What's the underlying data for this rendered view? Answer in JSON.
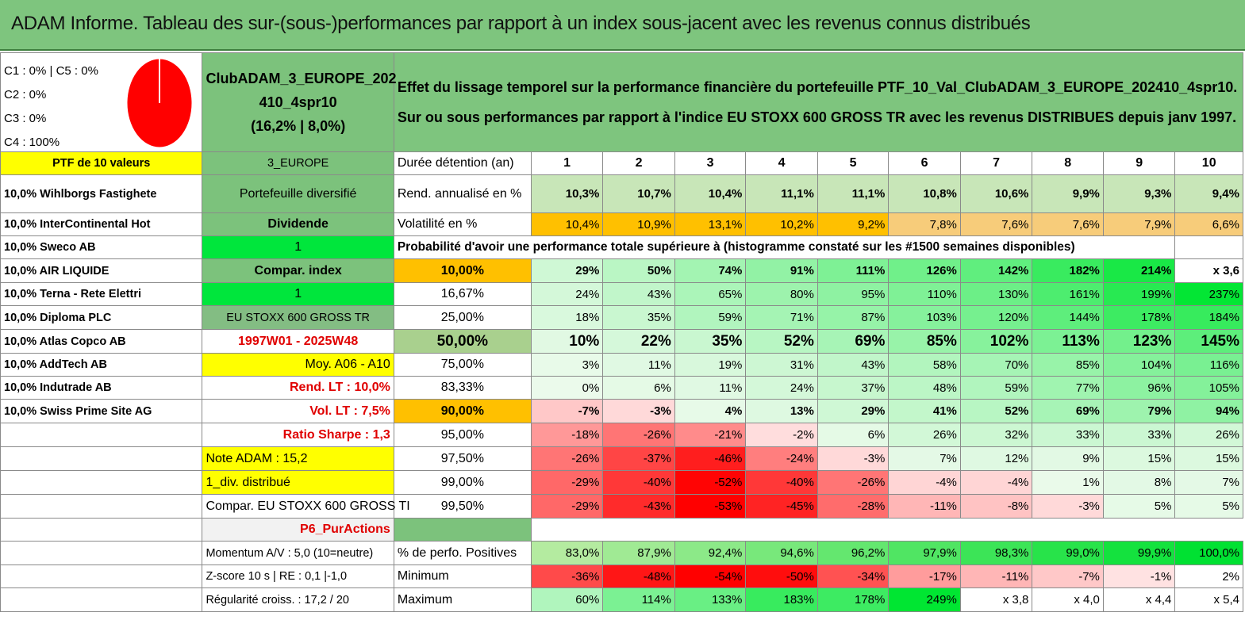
{
  "title": "ADAM Informe. Tableau des sur-(sous-)performances par rapport à un index sous-jacent avec les revenus connus distribués",
  "pie": {
    "legend": [
      "C1 : 0% | C5 : 0%",
      "C2 : 0%",
      "C3 : 0%",
      "C4 : 100%"
    ],
    "color": "#ff0000"
  },
  "fund": {
    "name_line1": "ClubADAM_3_EUROPE_202",
    "name_line2": "410_4spr10",
    "perf": "(16,2% | 8,0%)"
  },
  "description": "Effet du lissage temporel sur la performance financière du portefeuille PTF_10_Val_ClubADAM_3_EUROPE_202410_4spr10. Sur ou sous performances par rapport à l'indice EU STOXX 600 GROSS TR avec les revenus DISTRIBUES depuis janv 1997.",
  "left": {
    "header": "PTF de 10 valeurs",
    "holdings": [
      "10,0% Wihlborgs Fastighete",
      "10,0% InterContinental Hot",
      "10,0% Sweco AB",
      "10,0% AIR LIQUIDE",
      "10,0% Terna - Rete Elettri",
      "10,0% Diploma PLC",
      "10,0% Atlas Copco AB",
      "10,0% AddTech AB",
      "10,0% Indutrade AB",
      "10,0% Swiss Prime Site AG"
    ]
  },
  "middle": {
    "region": "3_EUROPE",
    "type": "Portefeuille diversifié",
    "dividend": "Dividende",
    "dividend_val": "1",
    "compar": "Compar. index",
    "compar_val": "1",
    "index_name": "EU STOXX 600 GROSS TR",
    "period": "1997W01 - 2025W48",
    "moy": "Moy. A06 - A10",
    "rend_lt": "Rend. LT : 10,0%",
    "vol_lt": "Vol. LT : 7,5%",
    "sharpe": "Ratio Sharpe : 1,3",
    "note": "Note ADAM : 15,2",
    "div_distrib": "1_div. distribué",
    "compar_index": "Compar. EU STOXX 600 GROSS TI",
    "profile": "P6_PurActions",
    "momentum": "Momentum A/V : 5,0 (10=neutre)",
    "zscore": "Z-score 10 s | RE : 0,1 |-1,0",
    "regularite": "Régularité croiss. : 17,2 / 20"
  },
  "grid": {
    "duree_label": "Durée détention (an)",
    "years": [
      "1",
      "2",
      "3",
      "4",
      "5",
      "6",
      "7",
      "8",
      "9",
      "10"
    ],
    "rend_label": "Rend. annualisé en %",
    "rend": [
      "10,3%",
      "10,7%",
      "10,4%",
      "11,1%",
      "11,1%",
      "10,8%",
      "10,6%",
      "9,9%",
      "9,3%",
      "9,4%"
    ],
    "vol_label": "Volatilité en %",
    "vol": [
      "10,4%",
      "10,9%",
      "13,1%",
      "10,2%",
      "9,2%",
      "7,8%",
      "7,6%",
      "7,6%",
      "7,9%",
      "6,6%"
    ],
    "prob_title": "Probabilité d'avoir une performance totale supérieure à (histogramme constaté sur les #1500 semaines disponibles)",
    "quantiles": [
      {
        "p": "10,00%",
        "v": [
          "29%",
          "50%",
          "74%",
          "91%",
          "111%",
          "126%",
          "142%",
          "182%",
          "214%",
          "x 3,6"
        ]
      },
      {
        "p": "16,67%",
        "v": [
          "24%",
          "43%",
          "65%",
          "80%",
          "95%",
          "110%",
          "130%",
          "161%",
          "199%",
          "237%"
        ]
      },
      {
        "p": "25,00%",
        "v": [
          "18%",
          "35%",
          "59%",
          "71%",
          "87%",
          "103%",
          "120%",
          "144%",
          "178%",
          "184%"
        ]
      },
      {
        "p": "50,00%",
        "v": [
          "10%",
          "22%",
          "35%",
          "52%",
          "69%",
          "85%",
          "102%",
          "113%",
          "123%",
          "145%"
        ]
      },
      {
        "p": "75,00%",
        "v": [
          "3%",
          "11%",
          "19%",
          "31%",
          "43%",
          "58%",
          "70%",
          "85%",
          "104%",
          "116%"
        ]
      },
      {
        "p": "83,33%",
        "v": [
          "0%",
          "6%",
          "11%",
          "24%",
          "37%",
          "48%",
          "59%",
          "77%",
          "96%",
          "105%"
        ]
      },
      {
        "p": "90,00%",
        "v": [
          "-7%",
          "-3%",
          "4%",
          "13%",
          "29%",
          "41%",
          "52%",
          "69%",
          "79%",
          "94%"
        ]
      },
      {
        "p": "95,00%",
        "v": [
          "-18%",
          "-26%",
          "-21%",
          "-2%",
          "6%",
          "26%",
          "32%",
          "33%",
          "33%",
          "26%"
        ]
      },
      {
        "p": "97,50%",
        "v": [
          "-26%",
          "-37%",
          "-46%",
          "-24%",
          "-3%",
          "7%",
          "12%",
          "9%",
          "15%",
          "15%"
        ]
      },
      {
        "p": "99,00%",
        "v": [
          "-29%",
          "-40%",
          "-52%",
          "-40%",
          "-26%",
          "-4%",
          "-4%",
          "1%",
          "8%",
          "7%"
        ]
      },
      {
        "p": "99,50%",
        "v": [
          "-29%",
          "-43%",
          "-53%",
          "-45%",
          "-28%",
          "-11%",
          "-8%",
          "-3%",
          "5%",
          "5%"
        ]
      }
    ],
    "pos_label": "% de perfo. Positives",
    "pos": [
      "83,0%",
      "87,9%",
      "92,4%",
      "94,6%",
      "96,2%",
      "97,9%",
      "98,3%",
      "99,0%",
      "99,9%",
      "100,0%"
    ],
    "min_label": "Minimum",
    "min": [
      "-36%",
      "-48%",
      "-54%",
      "-50%",
      "-34%",
      "-17%",
      "-11%",
      "-7%",
      "-1%",
      "2%"
    ],
    "max_label": "Maximum",
    "max": [
      "60%",
      "114%",
      "133%",
      "183%",
      "178%",
      "249%",
      "x 3,8",
      "x 4,0",
      "x 4,4",
      "x 5,4"
    ]
  }
}
